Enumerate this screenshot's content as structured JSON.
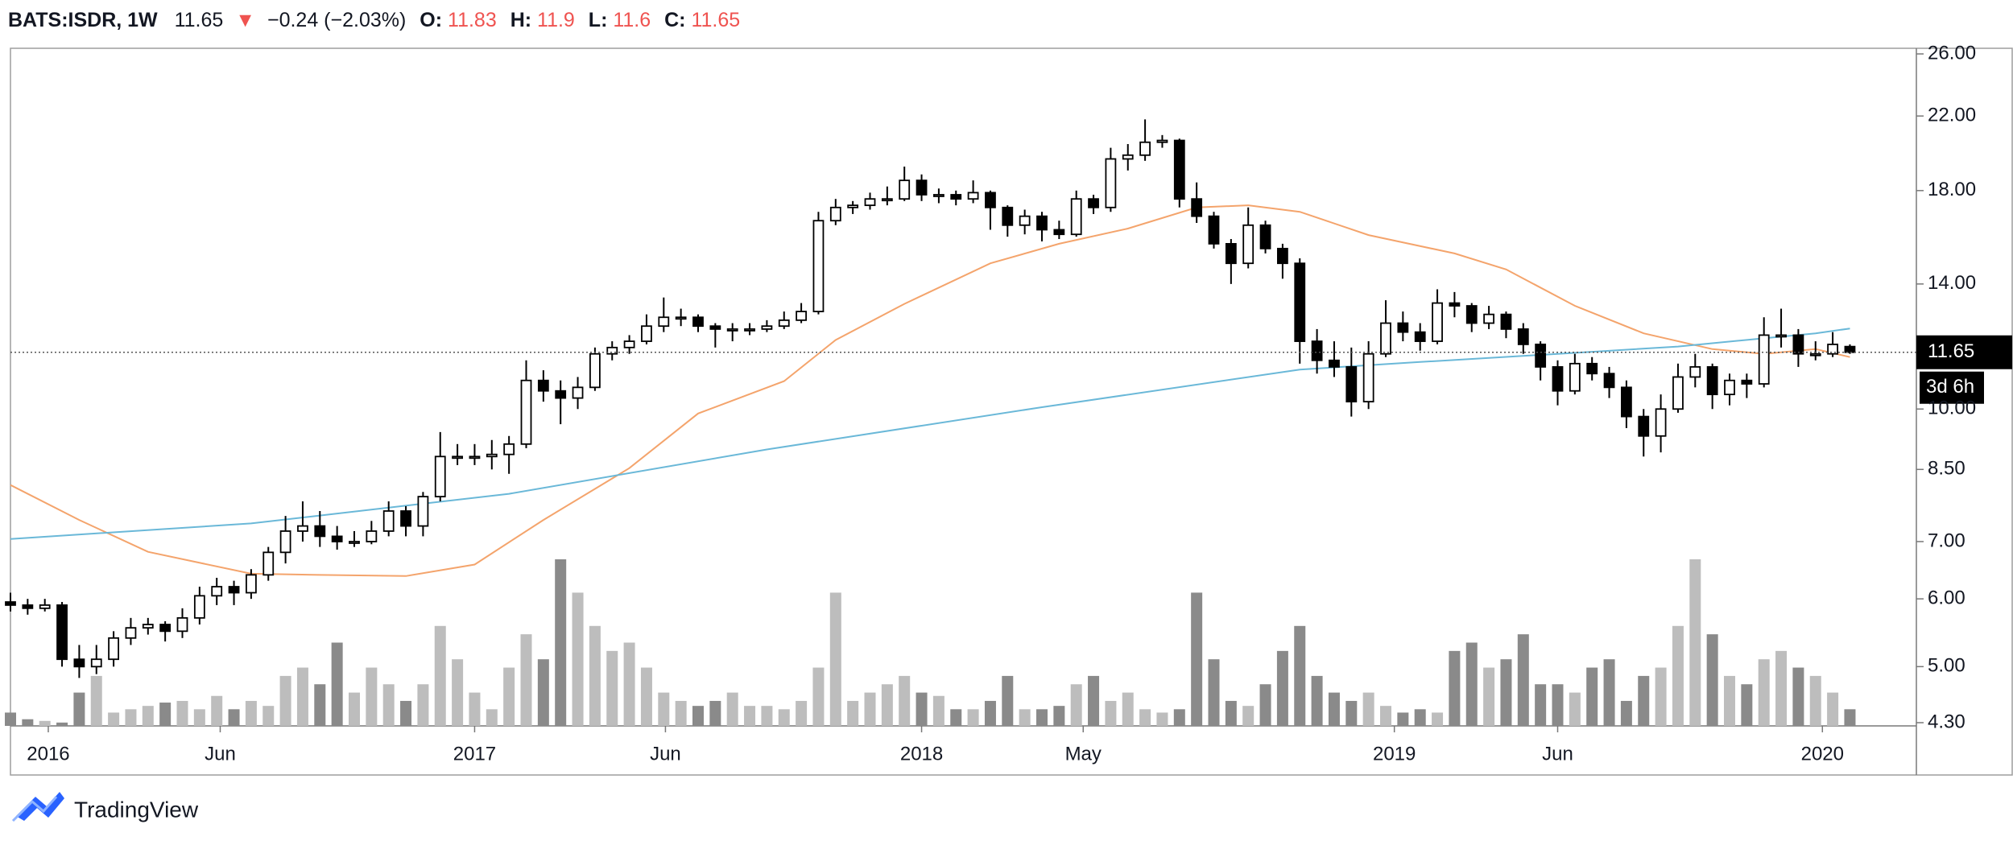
{
  "chart_data": {
    "type": "candlestick",
    "symbol": "BATS:ISDR, 1W",
    "change_arrow": "▼",
    "change": "−0.24 (−2.03%)",
    "ohlc_labels": [
      "O:",
      "H:",
      "L:",
      "C:"
    ],
    "countdown": "3d 6h",
    "watermark": "TradingView",
    "ylog": true,
    "grid": false,
    "ylim": [
      4.3,
      26
    ],
    "yticks": [
      {
        "value": 4.3,
        "label": "4.30"
      },
      {
        "value": 5,
        "label": "5.00"
      },
      {
        "value": 6,
        "label": "6.00"
      },
      {
        "value": 7,
        "label": "7.00"
      },
      {
        "value": 8.5,
        "label": "8.50"
      },
      {
        "value": 10,
        "label": "10.00"
      },
      {
        "value": 14,
        "label": "14.00"
      },
      {
        "value": 18,
        "label": "18.00"
      },
      {
        "value": 22,
        "label": "22.00"
      },
      {
        "value": 26,
        "label": "26.00"
      }
    ],
    "xticks": [
      {
        "value": 2.2,
        "label": "2016"
      },
      {
        "value": 12.2,
        "label": "Jun"
      },
      {
        "value": 27,
        "label": "2017"
      },
      {
        "value": 38.1,
        "label": "Jun"
      },
      {
        "value": 53,
        "label": "2018"
      },
      {
        "value": 62.4,
        "label": "May"
      },
      {
        "value": 80.5,
        "label": "2019"
      },
      {
        "value": 90,
        "label": "Jun"
      },
      {
        "value": 105.4,
        "label": "2020"
      }
    ],
    "up_color": "#ffffff",
    "down_color": "#000000",
    "outline_color": "#000000",
    "volume_up_color": "#bdbdbd",
    "volume_down_color": "#8a8a8a",
    "change_color": "#ef5350",
    "ohlc": [
      [
        5.95,
        6.1,
        5.8,
        5.9
      ],
      [
        5.9,
        6.0,
        5.75,
        5.85
      ],
      [
        5.85,
        6.0,
        5.8,
        5.9
      ],
      [
        5.9,
        5.95,
        5.0,
        5.1
      ],
      [
        5.1,
        5.3,
        4.85,
        5.0
      ],
      [
        5.0,
        5.3,
        4.9,
        5.1
      ],
      [
        5.1,
        5.5,
        5.0,
        5.4
      ],
      [
        5.4,
        5.7,
        5.3,
        5.55
      ],
      [
        5.55,
        5.7,
        5.45,
        5.6
      ],
      [
        5.6,
        5.65,
        5.35,
        5.5
      ],
      [
        5.5,
        5.85,
        5.4,
        5.7
      ],
      [
        5.7,
        6.2,
        5.6,
        6.05
      ],
      [
        6.05,
        6.35,
        5.9,
        6.2
      ],
      [
        6.2,
        6.3,
        5.9,
        6.1
      ],
      [
        6.1,
        6.5,
        6.0,
        6.4
      ],
      [
        6.4,
        6.9,
        6.3,
        6.8
      ],
      [
        6.8,
        7.5,
        6.6,
        7.2
      ],
      [
        7.2,
        7.8,
        7.0,
        7.3
      ],
      [
        7.3,
        7.6,
        6.9,
        7.1
      ],
      [
        7.1,
        7.3,
        6.85,
        7.0
      ],
      [
        7.0,
        7.2,
        6.9,
        7.0
      ],
      [
        7.0,
        7.4,
        6.95,
        7.2
      ],
      [
        7.2,
        7.8,
        7.1,
        7.6
      ],
      [
        7.6,
        7.7,
        7.1,
        7.3
      ],
      [
        7.3,
        8.0,
        7.1,
        7.9
      ],
      [
        7.9,
        9.4,
        7.8,
        8.8
      ],
      [
        8.8,
        9.1,
        8.6,
        8.8
      ],
      [
        8.8,
        9.1,
        8.6,
        8.8
      ],
      [
        8.8,
        9.2,
        8.5,
        8.85
      ],
      [
        8.85,
        9.3,
        8.4,
        9.1
      ],
      [
        9.1,
        11.4,
        9.0,
        10.8
      ],
      [
        10.8,
        11.1,
        10.2,
        10.5
      ],
      [
        10.5,
        10.8,
        9.6,
        10.3
      ],
      [
        10.3,
        10.9,
        10.0,
        10.6
      ],
      [
        10.6,
        11.8,
        10.5,
        11.6
      ],
      [
        11.6,
        12.0,
        11.4,
        11.8
      ],
      [
        11.8,
        12.2,
        11.6,
        12.0
      ],
      [
        12.0,
        12.9,
        11.9,
        12.5
      ],
      [
        12.5,
        13.5,
        12.3,
        12.8
      ],
      [
        12.8,
        13.1,
        12.5,
        12.8
      ],
      [
        12.8,
        12.9,
        12.3,
        12.5
      ],
      [
        12.5,
        12.6,
        11.8,
        12.4
      ],
      [
        12.4,
        12.6,
        12.0,
        12.4
      ],
      [
        12.4,
        12.6,
        12.2,
        12.4
      ],
      [
        12.4,
        12.7,
        12.3,
        12.5
      ],
      [
        12.5,
        13.0,
        12.4,
        12.7
      ],
      [
        12.7,
        13.3,
        12.6,
        13.0
      ],
      [
        13.0,
        17.0,
        12.9,
        16.6
      ],
      [
        16.6,
        17.6,
        16.4,
        17.2
      ],
      [
        17.2,
        17.5,
        16.9,
        17.3
      ],
      [
        17.3,
        17.9,
        17.1,
        17.6
      ],
      [
        17.6,
        18.2,
        17.3,
        17.6
      ],
      [
        17.6,
        19.2,
        17.5,
        18.5
      ],
      [
        18.5,
        18.8,
        17.5,
        17.8
      ],
      [
        17.8,
        18.1,
        17.4,
        17.8
      ],
      [
        17.8,
        18.0,
        17.3,
        17.6
      ],
      [
        17.6,
        18.5,
        17.4,
        17.9
      ],
      [
        17.9,
        18.0,
        16.2,
        17.2
      ],
      [
        17.2,
        17.3,
        15.9,
        16.4
      ],
      [
        16.4,
        17.1,
        16.0,
        16.8
      ],
      [
        16.8,
        17.0,
        15.7,
        16.2
      ],
      [
        16.2,
        16.6,
        15.8,
        16.0
      ],
      [
        16.0,
        18.0,
        15.9,
        17.6
      ],
      [
        17.6,
        17.8,
        16.9,
        17.2
      ],
      [
        17.2,
        20.2,
        17.0,
        19.6
      ],
      [
        19.6,
        20.4,
        19.0,
        19.8
      ],
      [
        19.8,
        21.8,
        19.5,
        20.5
      ],
      [
        20.5,
        20.9,
        20.2,
        20.6
      ],
      [
        20.6,
        20.7,
        17.2,
        17.6
      ],
      [
        17.6,
        18.4,
        16.5,
        16.8
      ],
      [
        16.8,
        17.0,
        15.4,
        15.6
      ],
      [
        15.6,
        15.8,
        14.0,
        14.8
      ],
      [
        14.8,
        17.2,
        14.6,
        16.4
      ],
      [
        16.4,
        16.6,
        15.2,
        15.4
      ],
      [
        15.4,
        15.6,
        14.2,
        14.8
      ],
      [
        14.8,
        15.0,
        11.3,
        12.0
      ],
      [
        12.0,
        12.4,
        11.0,
        11.4
      ],
      [
        11.4,
        12.0,
        10.9,
        11.2
      ],
      [
        11.2,
        11.8,
        9.8,
        10.2
      ],
      [
        10.2,
        12.0,
        10.0,
        11.6
      ],
      [
        11.6,
        13.4,
        11.5,
        12.6
      ],
      [
        12.6,
        13.0,
        12.0,
        12.3
      ],
      [
        12.3,
        12.6,
        11.7,
        12.0
      ],
      [
        12.0,
        13.8,
        11.9,
        13.3
      ],
      [
        13.3,
        13.7,
        12.8,
        13.2
      ],
      [
        13.2,
        13.3,
        12.3,
        12.6
      ],
      [
        12.6,
        13.2,
        12.4,
        12.9
      ],
      [
        12.9,
        13.0,
        12.1,
        12.4
      ],
      [
        12.4,
        12.6,
        11.6,
        11.9
      ],
      [
        11.9,
        12.0,
        10.8,
        11.2
      ],
      [
        11.2,
        11.4,
        10.1,
        10.5
      ],
      [
        10.5,
        11.6,
        10.4,
        11.3
      ],
      [
        11.3,
        11.5,
        10.8,
        11.0
      ],
      [
        11.0,
        11.2,
        10.3,
        10.6
      ],
      [
        10.6,
        10.8,
        9.5,
        9.8
      ],
      [
        9.8,
        10.0,
        8.8,
        9.3
      ],
      [
        9.3,
        10.4,
        8.9,
        10.0
      ],
      [
        10.0,
        11.3,
        9.9,
        10.9
      ],
      [
        10.9,
        11.6,
        10.6,
        11.2
      ],
      [
        11.2,
        11.3,
        10.0,
        10.4
      ],
      [
        10.4,
        11.0,
        10.1,
        10.8
      ],
      [
        10.8,
        11.0,
        10.3,
        10.7
      ],
      [
        10.7,
        12.8,
        10.6,
        12.2
      ],
      [
        12.2,
        13.1,
        11.8,
        12.2
      ],
      [
        12.2,
        12.4,
        11.2,
        11.6
      ],
      [
        11.6,
        12.0,
        11.4,
        11.6
      ],
      [
        11.6,
        12.3,
        11.5,
        11.9
      ],
      [
        11.83,
        11.9,
        11.6,
        11.65
      ]
    ],
    "volume": [
      8,
      4,
      3,
      2,
      20,
      30,
      8,
      10,
      12,
      14,
      15,
      10,
      18,
      10,
      15,
      12,
      30,
      35,
      25,
      50,
      20,
      35,
      25,
      15,
      25,
      60,
      40,
      20,
      10,
      35,
      55,
      40,
      100,
      80,
      60,
      45,
      50,
      35,
      20,
      15,
      12,
      15,
      20,
      12,
      12,
      10,
      15,
      35,
      80,
      15,
      20,
      25,
      30,
      20,
      18,
      10,
      10,
      15,
      30,
      10,
      10,
      12,
      25,
      30,
      15,
      20,
      10,
      8,
      10,
      80,
      40,
      15,
      12,
      25,
      45,
      60,
      30,
      20,
      15,
      20,
      12,
      8,
      10,
      8,
      45,
      50,
      35,
      40,
      55,
      25,
      25,
      20,
      35,
      40,
      15,
      30,
      35,
      60,
      100,
      55,
      30,
      25,
      40,
      45,
      35,
      30,
      20,
      10
    ],
    "ma": [
      {
        "color": "#f4a46c",
        "x": [
          0,
          4,
          8,
          14,
          18,
          23,
          27,
          31,
          36,
          40,
          45,
          48,
          52,
          57,
          61,
          65,
          69,
          72,
          75,
          79,
          84,
          87,
          91,
          95,
          99,
          102,
          105,
          107
        ],
        "values": [
          8.15,
          7.42,
          6.81,
          6.42,
          6.4,
          6.38,
          6.58,
          7.42,
          8.53,
          9.88,
          10.78,
          12.04,
          13.27,
          14.8,
          15.6,
          16.25,
          17.2,
          17.3,
          17.0,
          15.97,
          15.2,
          14.56,
          13.2,
          12.26,
          11.75,
          11.6,
          11.75,
          11.5
        ]
      },
      {
        "color": "#6ab8d8",
        "x": [
          0,
          14,
          29,
          44,
          60,
          75,
          82,
          90,
          97,
          105,
          107
        ],
        "values": [
          7.05,
          7.35,
          7.96,
          8.97,
          10.05,
          11.12,
          11.35,
          11.6,
          11.83,
          12.26,
          12.42
        ]
      }
    ]
  }
}
